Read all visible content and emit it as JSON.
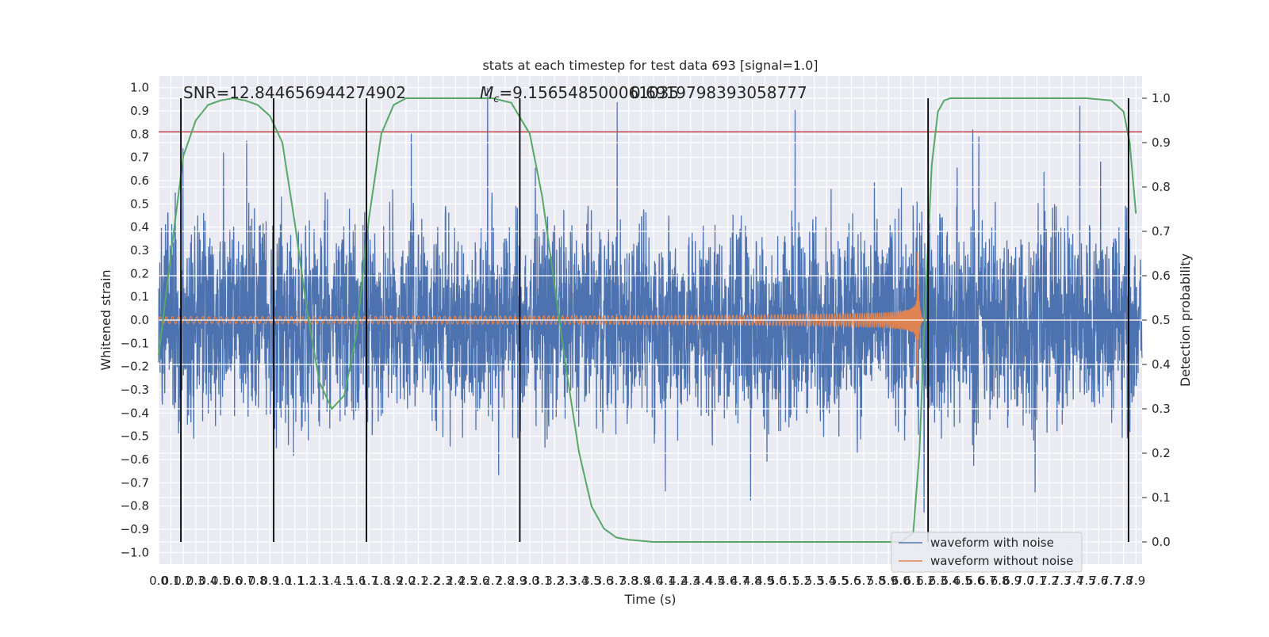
{
  "chart_data": {
    "type": "line",
    "title": "stats at each timestep for test data 693 [signal=1.0]",
    "xlabel": "Time (s)",
    "ylabel": "Whitened strain",
    "y2label": "Detection probability",
    "xlim": [
      0.0,
      7.95
    ],
    "ylim": [
      -1.05,
      1.05
    ],
    "y2lim": [
      -0.05,
      1.05
    ],
    "grid": true,
    "legend_position": "lower-right",
    "annotations": {
      "snr": "SNR=12.844656944274902",
      "mc_prefix": "M",
      "mc_sub": "c",
      "mc_value": "=9.156548500061035",
      "mc_overlap": "0.6919798393058777"
    },
    "x_ticks": [
      "0.0",
      "0.1",
      "0.2",
      "0.3",
      "0.4",
      "0.5",
      "0.6",
      "0.7",
      "0.8",
      "0.9",
      "1.0",
      "1.1",
      "1.2",
      "1.3",
      "1.4",
      "1.5",
      "1.6",
      "1.7",
      "1.8",
      "1.9",
      "2.0",
      "2.1",
      "2.2",
      "2.3",
      "2.4",
      "2.5",
      "2.6",
      "2.7",
      "2.8",
      "2.9",
      "3.0",
      "3.1",
      "3.2",
      "3.3",
      "3.4",
      "3.5",
      "3.6",
      "3.7",
      "3.8",
      "3.9",
      "4.0",
      "4.1",
      "4.2",
      "4.3",
      "4.4",
      "4.5",
      "4.6",
      "4.7",
      "4.8",
      "4.9",
      "5.0",
      "5.1",
      "5.2",
      "5.3",
      "5.4",
      "5.5",
      "5.6",
      "5.7",
      "5.8",
      "5.9",
      "6.0",
      "6.1",
      "6.2",
      "6.3",
      "6.4",
      "6.5",
      "6.6",
      "6.7",
      "6.8",
      "6.9",
      "7.0",
      "7.1",
      "7.2",
      "7.3",
      "7.4",
      "7.5",
      "7.6",
      "7.7",
      "7.8",
      "7.9"
    ],
    "y_ticks": [
      "1.0",
      "0.9",
      "0.8",
      "0.7",
      "0.6",
      "0.5",
      "0.4",
      "0.3",
      "0.2",
      "0.1",
      "0.0",
      "−0.1",
      "−0.2",
      "−0.3",
      "−0.4",
      "−0.5",
      "−0.6",
      "−0.7",
      "−0.8",
      "−0.9",
      "−1.0"
    ],
    "y2_ticks": [
      "1.0",
      "0.9",
      "0.8",
      "0.7",
      "0.6",
      "0.5",
      "0.4",
      "0.3",
      "0.2",
      "0.1",
      "0.0"
    ],
    "threshold_y": 0.81,
    "vertical_lines_x": [
      0.18,
      0.93,
      1.68,
      2.92,
      6.22,
      7.84
    ],
    "series": [
      {
        "name": "waveform with noise",
        "color": "#4c72b0",
        "noise_amplitude": 0.38,
        "peak_range": [
          -0.93,
          1.0
        ]
      },
      {
        "name": "waveform without noise",
        "color": "#dd8452",
        "chirp_start_amplitude": 0.015,
        "chirp_peak_amplitude": 0.4,
        "merger_time": 6.13
      },
      {
        "name": "",
        "color": "#55a868",
        "axis": "right",
        "x": [
          0.0,
          0.1,
          0.2,
          0.3,
          0.4,
          0.5,
          0.6,
          0.7,
          0.8,
          0.9,
          1.0,
          1.1,
          1.2,
          1.3,
          1.4,
          1.5,
          1.6,
          1.7,
          1.8,
          1.9,
          2.0,
          2.4,
          2.7,
          2.85,
          3.0,
          3.1,
          3.2,
          3.3,
          3.4,
          3.5,
          3.6,
          3.7,
          3.8,
          4.0,
          5.0,
          6.0,
          6.1,
          6.15,
          6.2,
          6.25,
          6.3,
          6.35,
          6.4,
          6.6,
          7.0,
          7.5,
          7.7,
          7.8,
          7.85,
          7.9
        ],
        "y": [
          0.42,
          0.65,
          0.87,
          0.95,
          0.985,
          0.995,
          1.0,
          0.995,
          0.985,
          0.96,
          0.9,
          0.72,
          0.52,
          0.36,
          0.3,
          0.33,
          0.47,
          0.73,
          0.92,
          0.985,
          1.0,
          1.0,
          1.0,
          0.99,
          0.92,
          0.78,
          0.58,
          0.38,
          0.2,
          0.08,
          0.03,
          0.01,
          0.005,
          0.0,
          0.0,
          0.0,
          0.02,
          0.2,
          0.55,
          0.85,
          0.97,
          0.995,
          1.0,
          1.0,
          1.0,
          1.0,
          0.995,
          0.97,
          0.9,
          0.74
        ]
      }
    ]
  }
}
